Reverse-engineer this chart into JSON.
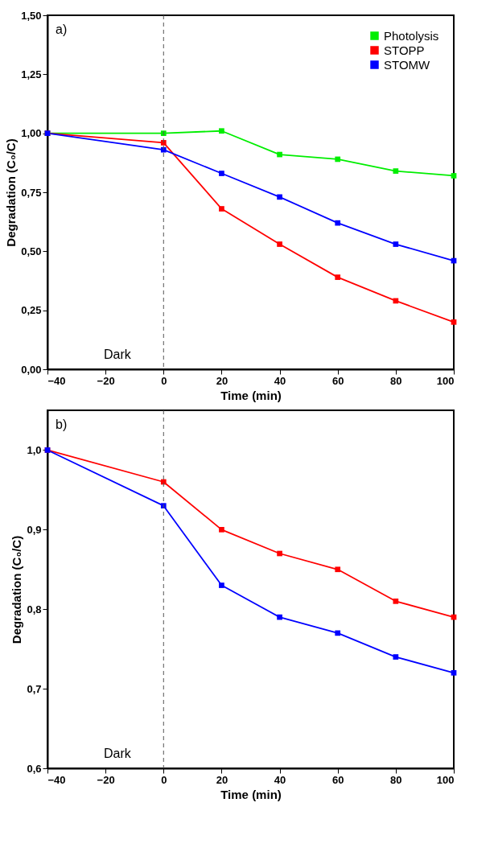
{
  "chart_data": [
    {
      "type": "line",
      "xlabel": "Time (min)",
      "ylabel": "Degradation (C₀/C)",
      "annotations": [
        "a)",
        "Dark"
      ],
      "x": [
        -40,
        0,
        20,
        40,
        60,
        80,
        100
      ],
      "series": [
        {
          "name": "Photolysis",
          "color": "#00ee00",
          "values": [
            1.0,
            1.0,
            1.01,
            0.91,
            0.89,
            0.84,
            0.82
          ]
        },
        {
          "name": "STOPP",
          "color": "#ff0000",
          "values": [
            1.0,
            0.96,
            0.68,
            0.53,
            0.39,
            0.29,
            0.2
          ]
        },
        {
          "name": "STOMW",
          "color": "#0000ff",
          "values": [
            1.0,
            0.93,
            0.83,
            0.73,
            0.62,
            0.53,
            0.46
          ]
        }
      ],
      "xlim": [
        -40,
        100
      ],
      "xticks": [
        -40,
        -20,
        0,
        20,
        40,
        60,
        80,
        100
      ],
      "ylim": [
        0,
        1.5
      ],
      "yticks": [
        {
          "value": 0,
          "label": "0,00"
        },
        {
          "value": 0.25,
          "label": "0,25"
        },
        {
          "value": 0.5,
          "label": "0,50"
        },
        {
          "value": 0.75,
          "label": "0,75"
        },
        {
          "value": 1.0,
          "label": "1,00"
        },
        {
          "value": 1.25,
          "label": "1,25"
        },
        {
          "value": 1.5,
          "label": "1,50"
        }
      ],
      "ref_lines": [
        {
          "axis": "x",
          "value": 0,
          "color": "#555555",
          "line_style": "dashed"
        }
      ],
      "grid": false,
      "legend": "top right",
      "marker": "square",
      "line_style": "solid"
    },
    {
      "type": "line",
      "xlabel": "Time (min)",
      "ylabel": "Degradation (C₀/C)",
      "annotations": [
        "b)",
        "Dark"
      ],
      "x": [
        -40,
        0,
        20,
        40,
        60,
        80,
        100
      ],
      "series": [
        {
          "name": "STOPP",
          "color": "#ff0000",
          "values": [
            1.0,
            0.96,
            0.9,
            0.87,
            0.85,
            0.81,
            0.79
          ]
        },
        {
          "name": "STOMW",
          "color": "#0000ff",
          "values": [
            1.0,
            0.93,
            0.83,
            0.79,
            0.77,
            0.74,
            0.72
          ]
        }
      ],
      "xlim": [
        -40,
        100
      ],
      "xticks": [
        -40,
        -20,
        0,
        20,
        40,
        60,
        80,
        100
      ],
      "ylim": [
        0.6,
        1.05
      ],
      "yticks": [
        {
          "value": 0.6,
          "label": "0,6"
        },
        {
          "value": 0.7,
          "label": "0,7"
        },
        {
          "value": 0.8,
          "label": "0,8"
        },
        {
          "value": 0.9,
          "label": "0,9"
        },
        {
          "value": 1.0,
          "label": "1,0"
        }
      ],
      "ref_lines": [
        {
          "axis": "x",
          "value": 0,
          "color": "#555555",
          "line_style": "dashed"
        }
      ],
      "grid": false,
      "legend": "top right",
      "marker": "square",
      "line_style": "solid"
    }
  ]
}
